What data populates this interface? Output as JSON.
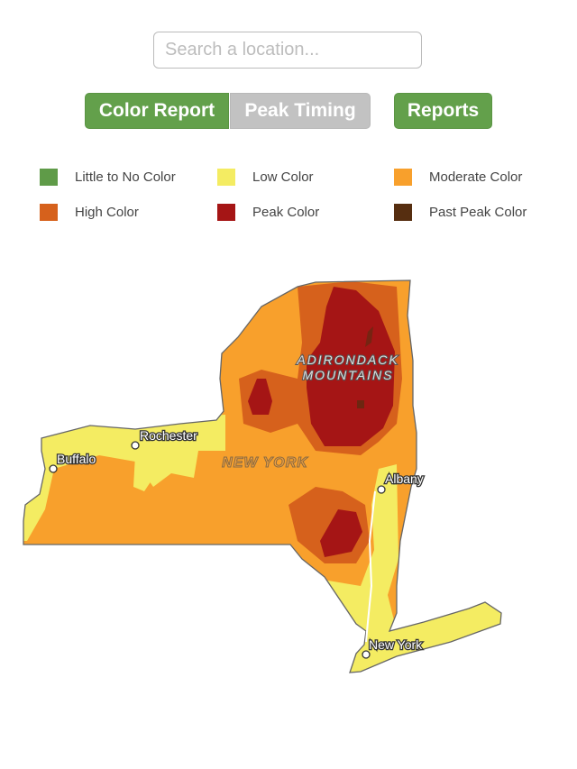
{
  "search": {
    "placeholder": "Search a location..."
  },
  "tabs": [
    {
      "label": "Color Report",
      "active": true
    },
    {
      "label": "Peak Timing",
      "active": false
    }
  ],
  "reports_button": "Reports",
  "legend": [
    {
      "label": "Little to No Color",
      "color": "#5f9b48"
    },
    {
      "label": "Low Color",
      "color": "#f4ec62"
    },
    {
      "label": "Moderate Color",
      "color": "#f8a02c"
    },
    {
      "label": "High Color",
      "color": "#d6611c"
    },
    {
      "label": "Peak Color",
      "color": "#a51515"
    },
    {
      "label": "Past Peak Color",
      "color": "#562e10"
    }
  ],
  "map": {
    "state_label": "NEW YORK",
    "region_label_line1": "ADIRONDACK",
    "region_label_line2": "MOUNTAINS",
    "cities": [
      "Rochester",
      "Buffalo",
      "Albany",
      "New York"
    ]
  }
}
